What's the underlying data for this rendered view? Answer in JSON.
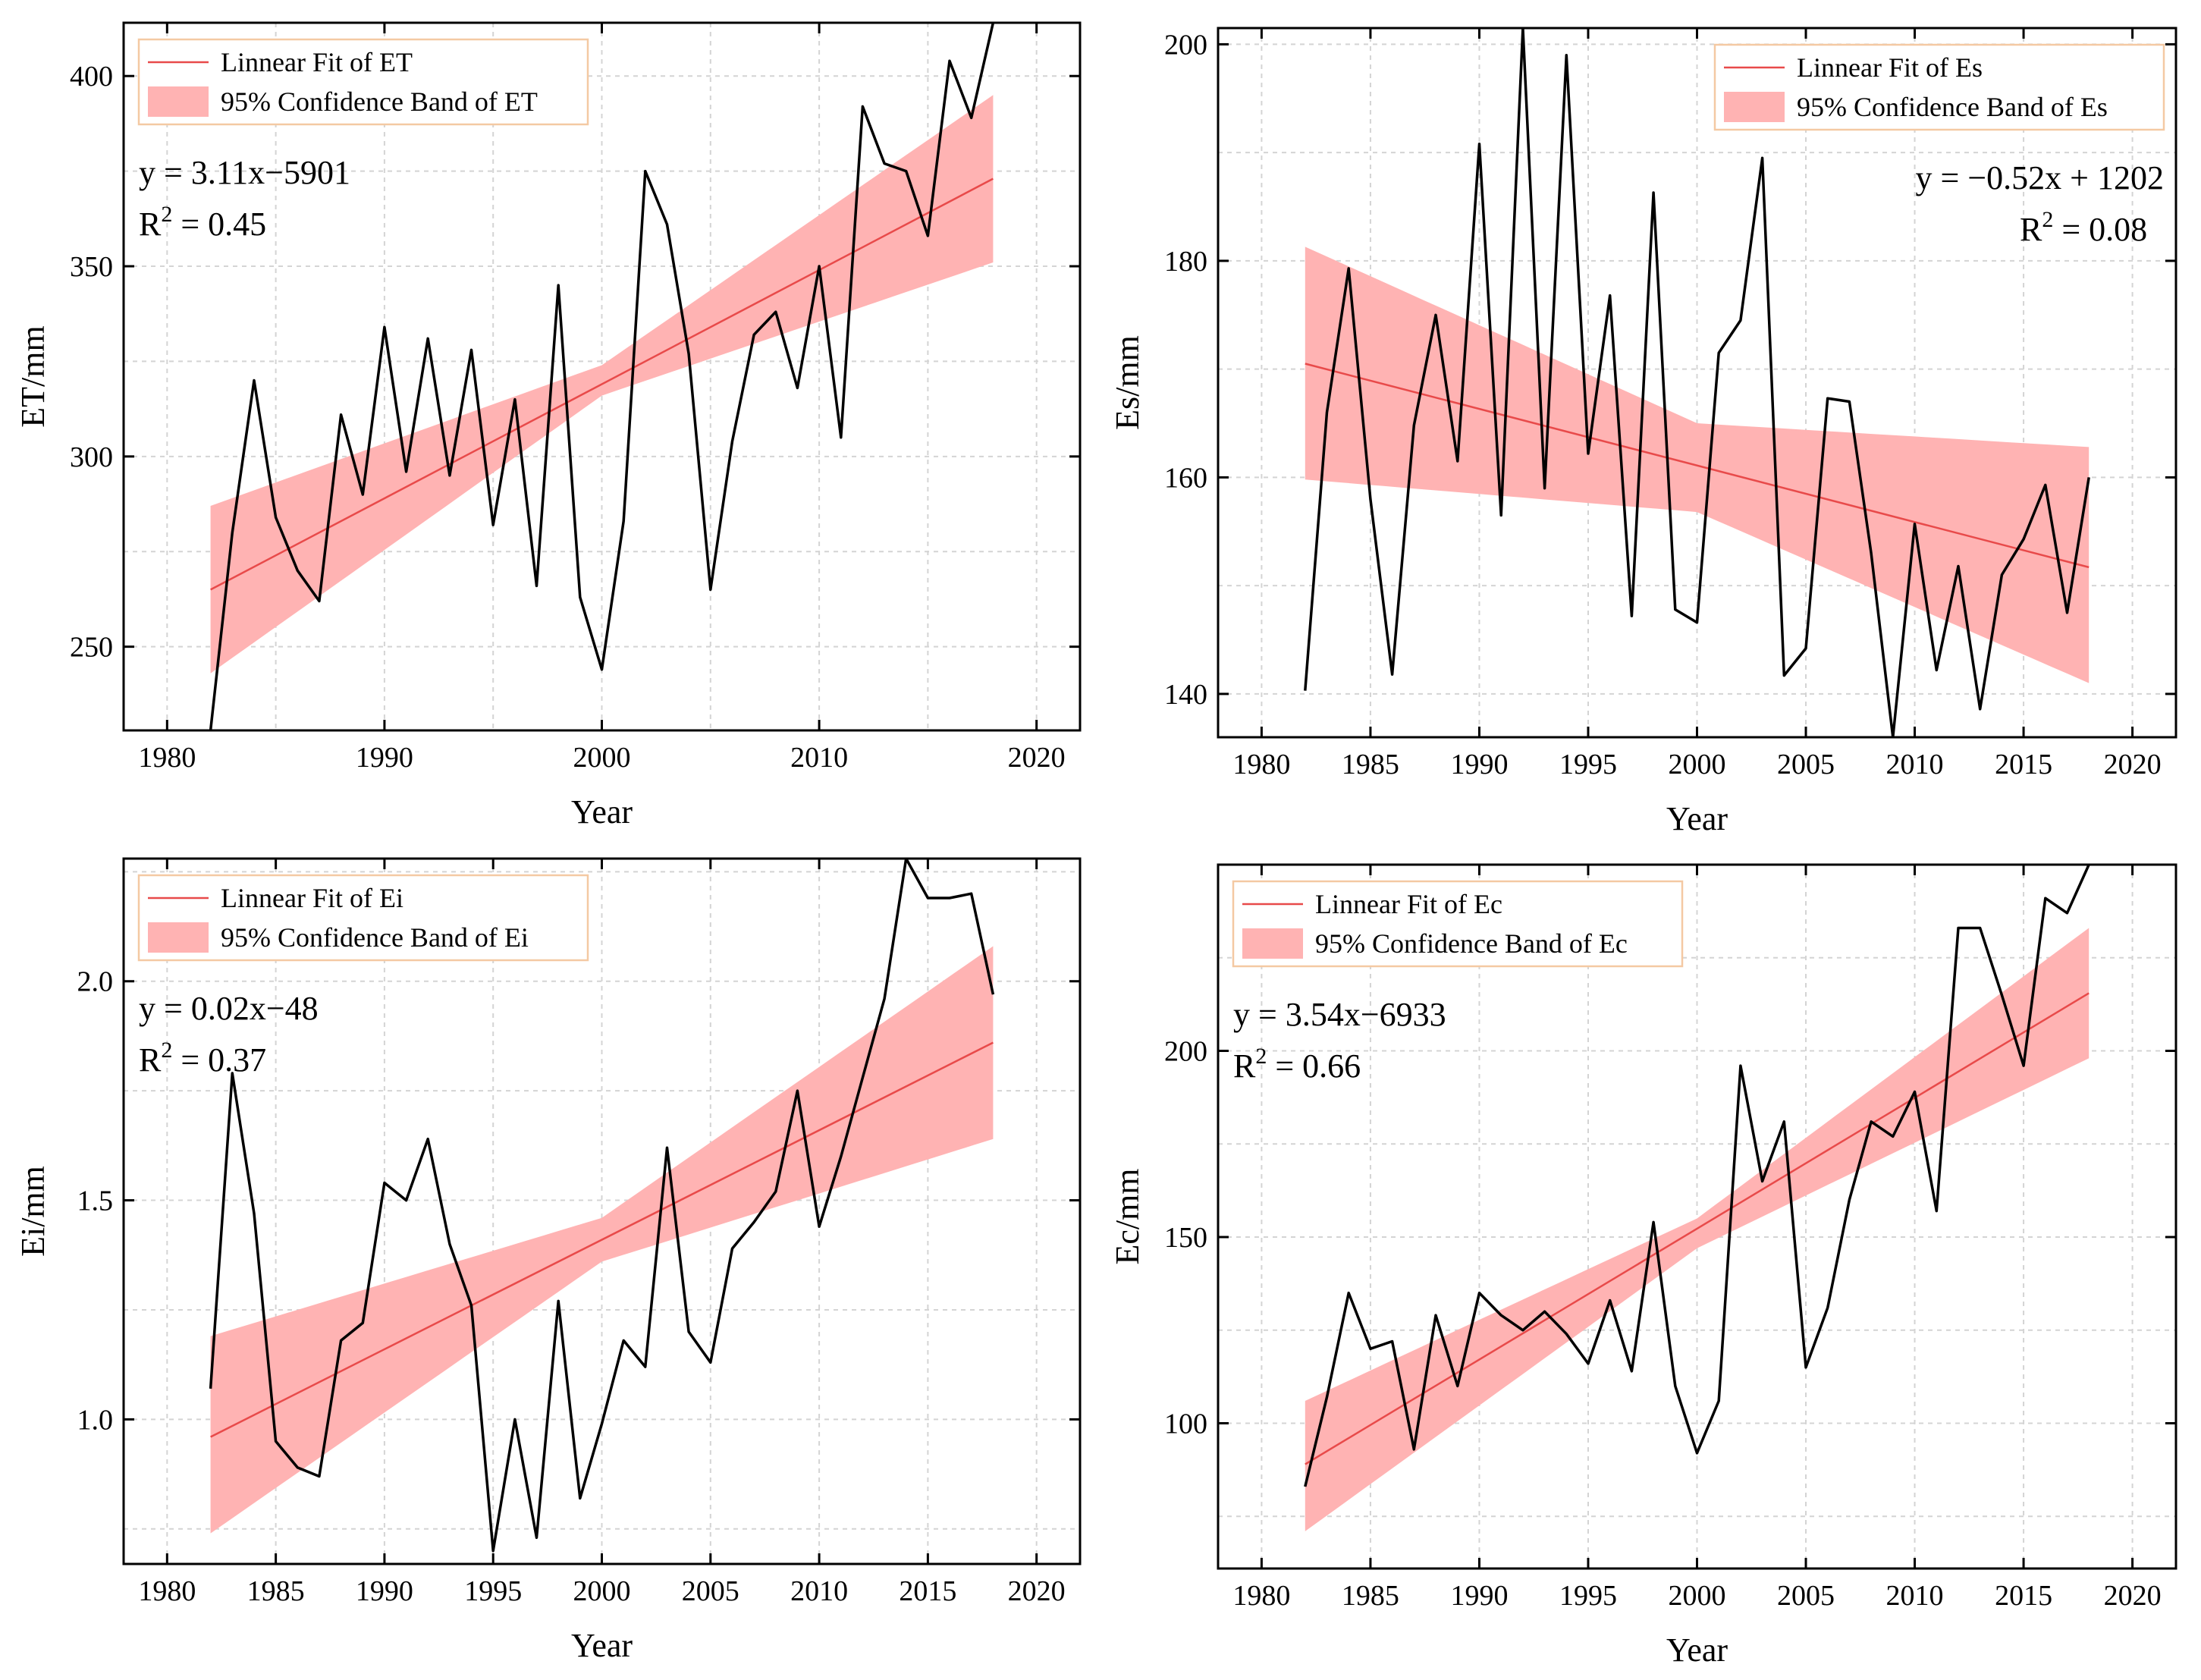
{
  "chart_data": [
    {
      "id": "et",
      "type": "line",
      "xlabel": "Year",
      "ylabel": "ET/mm",
      "xlim": [
        1978,
        2022
      ],
      "ylim": [
        228,
        414
      ],
      "xticks": [
        1980,
        1990,
        2000,
        2010,
        2020
      ],
      "xtick_labels": [
        "1980",
        "1990",
        "2000",
        "2010",
        "2020"
      ],
      "yticks": [
        250,
        300,
        350,
        400
      ],
      "ytick_labels": [
        "250",
        "300",
        "350",
        "400"
      ],
      "x": [
        1982,
        1983,
        1984,
        1985,
        1986,
        1987,
        1988,
        1989,
        1990,
        1991,
        1992,
        1993,
        1994,
        1995,
        1996,
        1997,
        1998,
        1999,
        2000,
        2001,
        2002,
        2003,
        2004,
        2005,
        2006,
        2007,
        2008,
        2009,
        2010,
        2011,
        2012,
        2013,
        2014,
        2015,
        2016,
        2017,
        2018
      ],
      "values": [
        228,
        280,
        320,
        284,
        270,
        262,
        311,
        290,
        334,
        296,
        331,
        295,
        328,
        282,
        315,
        266,
        345,
        263,
        244,
        283,
        375,
        361,
        327,
        265,
        304,
        332,
        338,
        318,
        350,
        305,
        392,
        377,
        375,
        358,
        404,
        389,
        414
      ],
      "fit": {
        "label": "Linnear Fit of ET",
        "x": [
          1982,
          2018
        ],
        "y": [
          265,
          373
        ]
      },
      "band": {
        "label": "95% Confidence Band of ET",
        "x": [
          1982,
          2000,
          2018
        ],
        "lower": [
          243,
          316,
          351
        ],
        "upper": [
          287,
          324,
          395
        ]
      },
      "equation": "y = 3.11x−5901",
      "r2_prefix": "R",
      "r2_sup": "2",
      "r2_value": " = 0.45",
      "legend_position": "top-left",
      "eq_position": "left",
      "colors": {
        "line": "#000000",
        "fit": "#e84a4a",
        "band": "#ffb3b3"
      }
    },
    {
      "id": "es",
      "type": "line",
      "xlabel": "Year",
      "ylabel": "Es/mm",
      "xlim": [
        1978,
        2022
      ],
      "ylim": [
        136,
        201.5
      ],
      "xticks": [
        1980,
        1985,
        1990,
        1995,
        2000,
        2005,
        2010,
        2015,
        2020
      ],
      "xtick_labels": [
        "1980",
        "1985",
        "1990",
        "1995",
        "2000",
        "2005",
        "2010",
        "2015",
        "2020"
      ],
      "yticks": [
        140,
        160,
        180,
        200
      ],
      "ytick_labels": [
        "140",
        "160",
        "180",
        "200"
      ],
      "x": [
        1982,
        1983,
        1984,
        1985,
        1986,
        1987,
        1988,
        1989,
        1990,
        1991,
        1992,
        1993,
        1994,
        1995,
        1996,
        1997,
        1998,
        1999,
        2000,
        2001,
        2002,
        2003,
        2004,
        2005,
        2006,
        2007,
        2008,
        2009,
        2010,
        2011,
        2012,
        2013,
        2014,
        2015,
        2016,
        2017,
        2018
      ],
      "values": [
        140.3,
        166,
        179.3,
        158,
        141.8,
        164.8,
        175,
        161.5,
        190.8,
        156.5,
        201.5,
        159,
        199,
        162.2,
        176.8,
        147.2,
        186.3,
        147.8,
        146.6,
        171.5,
        174.5,
        189.5,
        141.7,
        144.2,
        167.3,
        167,
        153,
        136,
        155.7,
        142.2,
        151.8,
        138.6,
        151,
        154.3,
        159.3,
        147.5,
        160
      ],
      "fit": {
        "label": "Linnear Fit of Es",
        "x": [
          1982,
          2018
        ],
        "y": [
          170.5,
          151.7
        ]
      },
      "band": {
        "label": "95% Confidence Band of Es",
        "x": [
          1982,
          2000,
          2018
        ],
        "lower": [
          159.8,
          156.8,
          141
        ],
        "upper": [
          181.3,
          165,
          162.8
        ]
      },
      "equation": "y = −0.52x + 1202",
      "r2_prefix": "R",
      "r2_sup": "2",
      "r2_value": " = 0.08",
      "legend_position": "top-right",
      "eq_position": "right",
      "colors": {
        "line": "#000000",
        "fit": "#e84a4a",
        "band": "#ffb3b3"
      }
    },
    {
      "id": "ei",
      "type": "line",
      "xlabel": "Year",
      "ylabel": "Ei/mm",
      "xlim": [
        1978,
        2022
      ],
      "ylim": [
        0.67,
        2.28
      ],
      "xticks": [
        1980,
        1985,
        1990,
        1995,
        2000,
        2005,
        2010,
        2015,
        2020
      ],
      "xtick_labels": [
        "1980",
        "1985",
        "1990",
        "1995",
        "2000",
        "2005",
        "2010",
        "2015",
        "2020"
      ],
      "yticks": [
        1.0,
        1.5,
        2.0
      ],
      "ytick_labels": [
        "1.0",
        "1.5",
        "2.0"
      ],
      "x": [
        1982,
        1983,
        1984,
        1985,
        1986,
        1987,
        1988,
        1989,
        1990,
        1991,
        1992,
        1993,
        1994,
        1995,
        1996,
        1997,
        1998,
        1999,
        2000,
        2001,
        2002,
        2003,
        2004,
        2005,
        2006,
        2007,
        2008,
        2009,
        2010,
        2011,
        2012,
        2013,
        2014,
        2015,
        2016,
        2017,
        2018
      ],
      "values": [
        1.07,
        1.79,
        1.47,
        0.95,
        0.89,
        0.87,
        1.18,
        1.22,
        1.54,
        1.5,
        1.64,
        1.4,
        1.26,
        0.7,
        1.0,
        0.73,
        1.27,
        0.82,
        0.99,
        1.18,
        1.12,
        1.62,
        1.2,
        1.13,
        1.39,
        1.45,
        1.52,
        1.75,
        1.44,
        1.6,
        1.78,
        1.96,
        2.28,
        2.19,
        2.19,
        2.2,
        1.97
      ],
      "fit": {
        "label": "Linnear Fit of Ei",
        "x": [
          1982,
          2018
        ],
        "y": [
          0.96,
          1.86
        ]
      },
      "band": {
        "label": "95% Confidence Band of Ei",
        "x": [
          1982,
          2000,
          2018
        ],
        "lower": [
          0.74,
          1.36,
          1.64
        ],
        "upper": [
          1.19,
          1.46,
          2.08
        ]
      },
      "equation": "y = 0.02x−48",
      "r2_prefix": "R",
      "r2_sup": "2",
      "r2_value": " = 0.37",
      "legend_position": "top-left",
      "eq_position": "left",
      "colors": {
        "line": "#000000",
        "fit": "#e84a4a",
        "band": "#ffb3b3"
      }
    },
    {
      "id": "ec",
      "type": "line",
      "xlabel": "Year",
      "ylabel": "Ec/mm",
      "xlim": [
        1978,
        2022
      ],
      "ylim": [
        61,
        250
      ],
      "xticks": [
        1980,
        1985,
        1990,
        1995,
        2000,
        2005,
        2010,
        2015,
        2020
      ],
      "xtick_labels": [
        "1980",
        "1985",
        "1990",
        "1995",
        "2000",
        "2005",
        "2010",
        "2015",
        "2020"
      ],
      "yticks": [
        100,
        150,
        200
      ],
      "ytick_labels": [
        "100",
        "150",
        "200"
      ],
      "x": [
        1982,
        1983,
        1984,
        1985,
        1986,
        1987,
        1988,
        1989,
        1990,
        1991,
        1992,
        1993,
        1994,
        1995,
        1996,
        1997,
        1998,
        1999,
        2000,
        2001,
        2002,
        2003,
        2004,
        2005,
        2006,
        2007,
        2008,
        2009,
        2010,
        2011,
        2012,
        2013,
        2014,
        2015,
        2016,
        2017,
        2018
      ],
      "values": [
        83,
        107,
        135,
        120,
        122,
        93,
        129,
        110,
        135,
        129,
        125,
        130,
        124,
        116,
        133,
        114,
        154,
        110,
        92,
        106,
        196,
        165,
        181,
        115,
        131,
        160,
        181,
        177,
        189,
        157,
        233,
        233,
        215,
        196,
        241,
        237,
        250
      ],
      "fit": {
        "label": "Linnear Fit of Ec",
        "x": [
          1982,
          2018
        ],
        "y": [
          89,
          215.5
        ]
      },
      "band": {
        "label": "95% Confidence Band of Ec",
        "x": [
          1982,
          2000,
          2018
        ],
        "lower": [
          71,
          147,
          198
        ],
        "upper": [
          106,
          155,
          233
        ]
      },
      "equation": "y = 3.54x−6933",
      "r2_prefix": "R",
      "r2_sup": "2",
      "r2_value": " = 0.66",
      "legend_position": "top-left",
      "eq_position": "left",
      "colors": {
        "line": "#000000",
        "fit": "#e84a4a",
        "band": "#ffb3b3"
      }
    }
  ]
}
